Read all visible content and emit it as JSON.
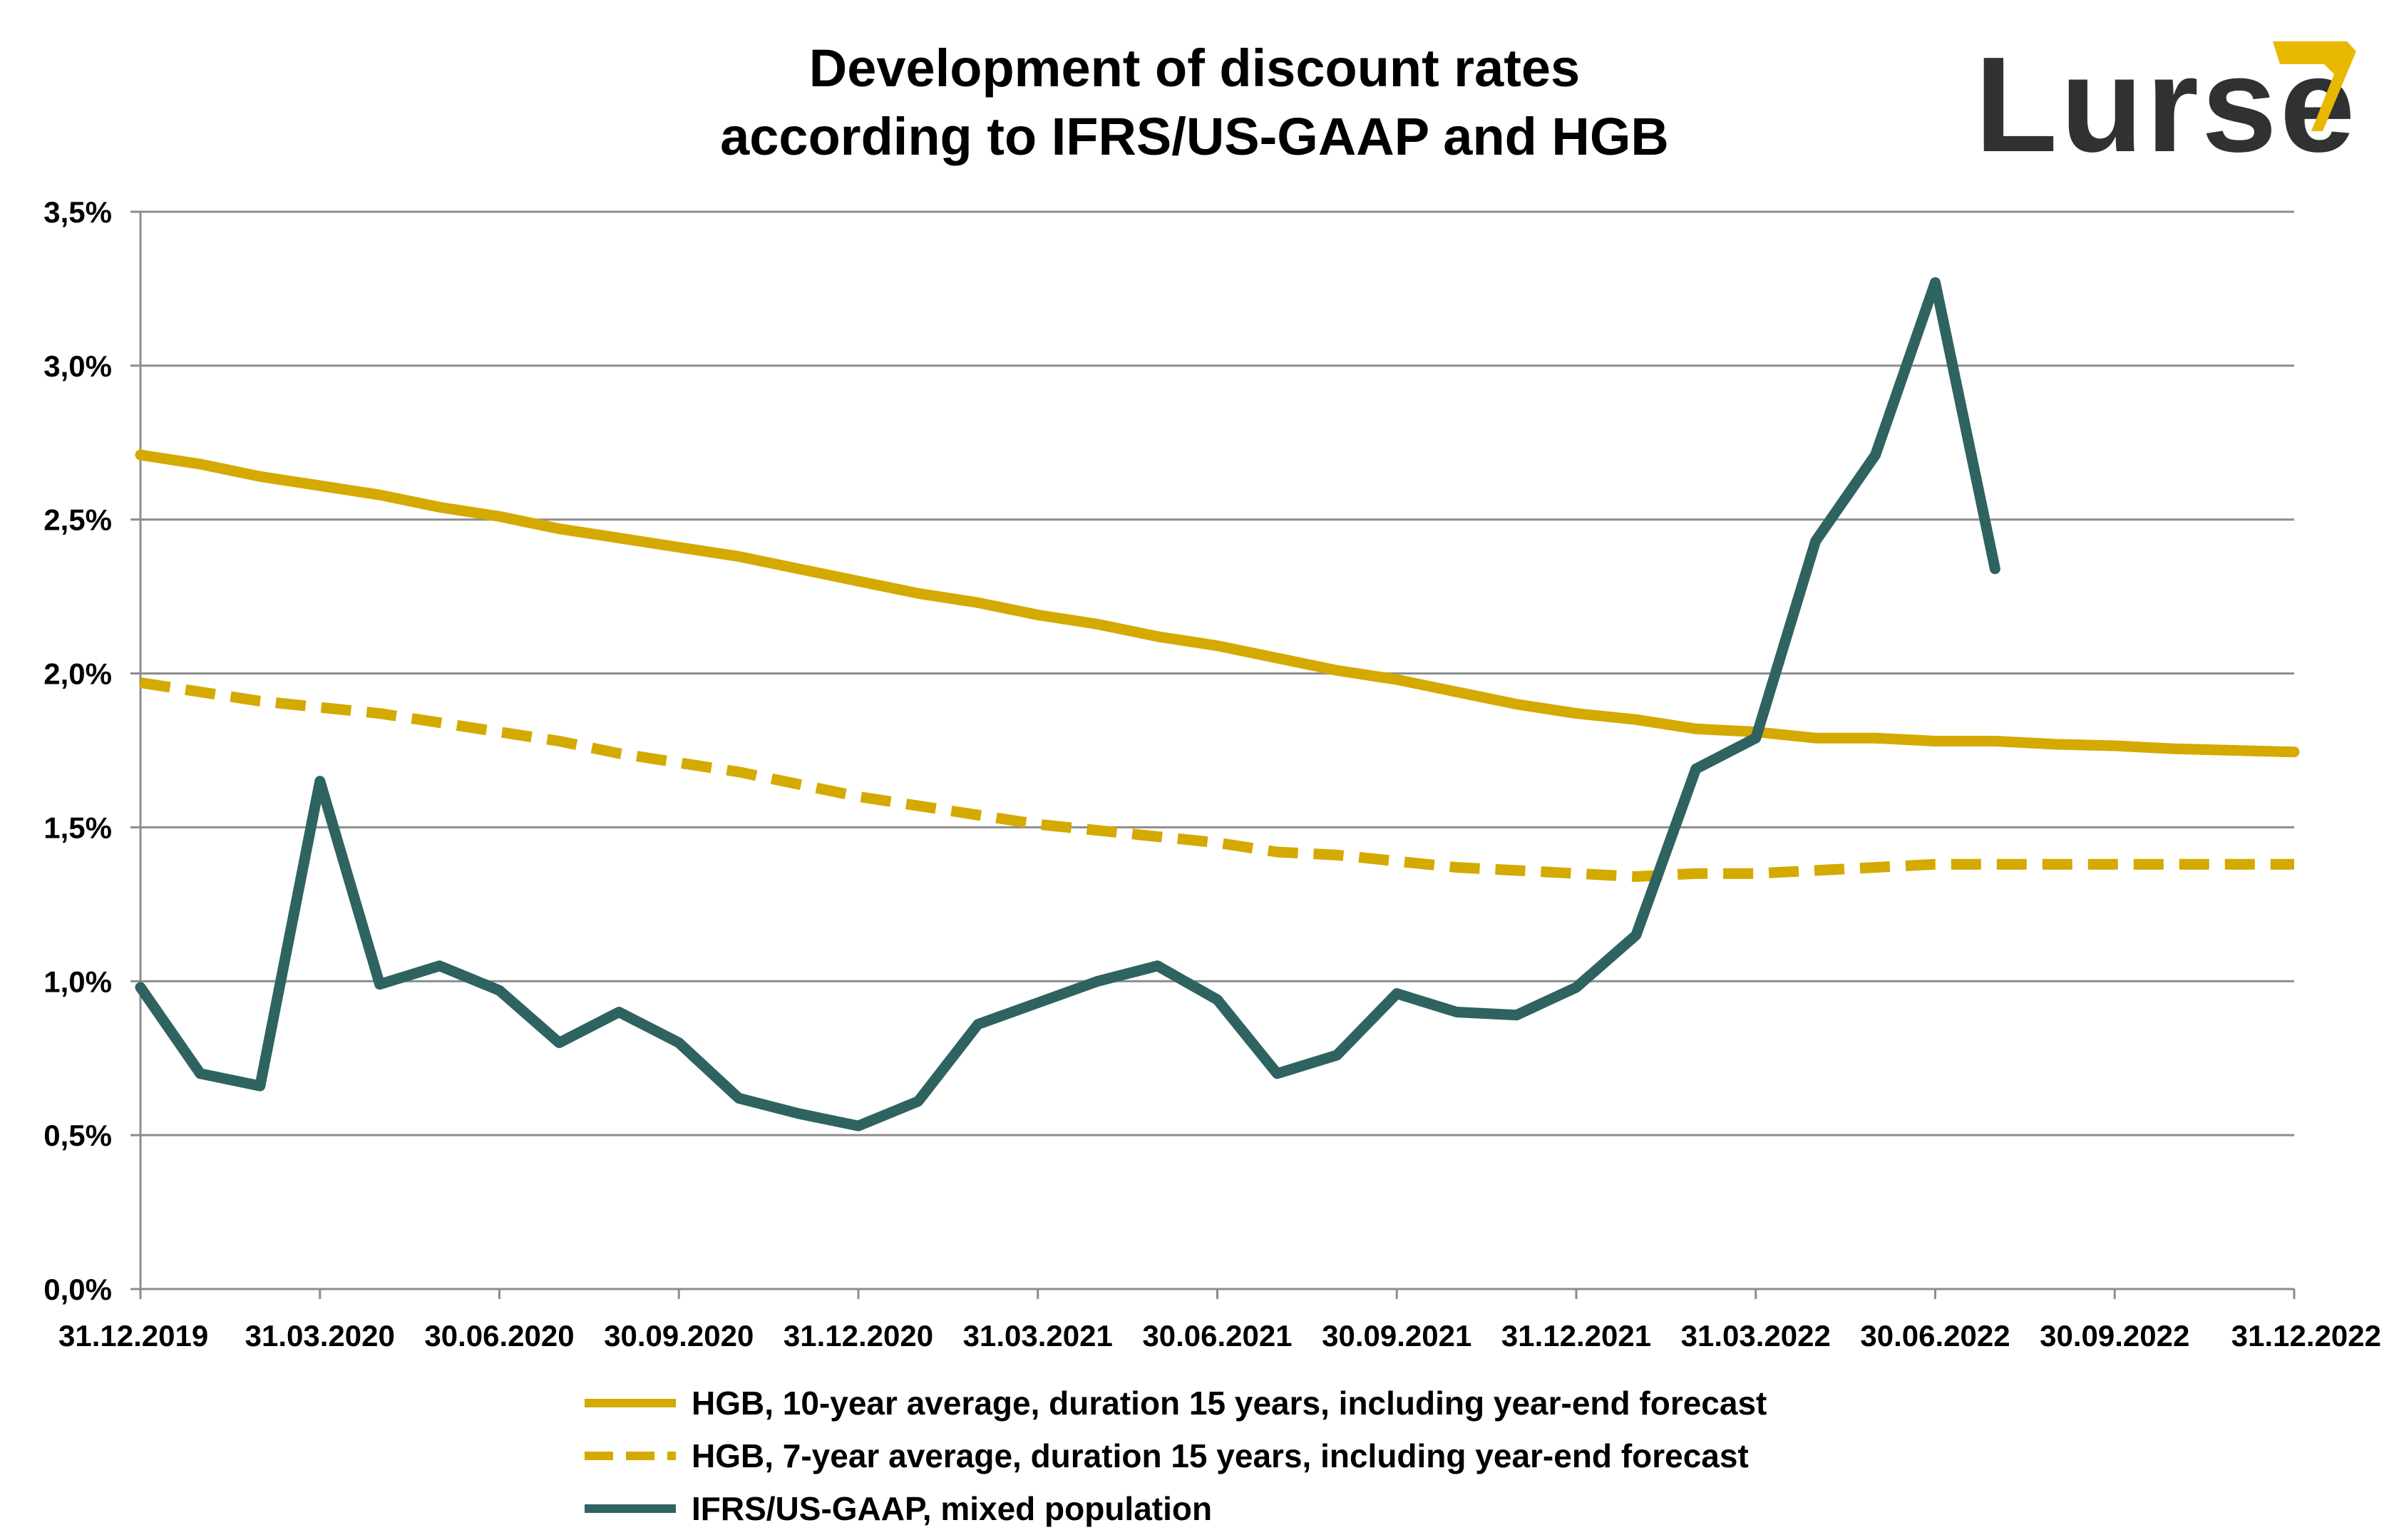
{
  "title_lines": [
    "Development of discount rates",
    "according to IFRS/US-GAAP and HGB"
  ],
  "logo": {
    "text": "Lurse"
  },
  "colors": {
    "gold": "#D4A900",
    "teal": "#2E6361",
    "grid": "#8C8C8C",
    "logo_text": "#2F3132",
    "logo_accent": "#E8B800"
  },
  "chart_data": {
    "type": "line",
    "title": "Development of discount rates according to IFRS/US-GAAP and HGB",
    "xlabel": "",
    "ylabel": "",
    "x_ticks": [
      "31.12.2019",
      "31.03.2020",
      "30.06.2020",
      "30.09.2020",
      "31.12.2020",
      "31.03.2021",
      "30.06.2021",
      "30.09.2021",
      "31.12.2021",
      "31.03.2022",
      "30.06.2022",
      "30.09.2022",
      "31.12.2022"
    ],
    "y_ticks": [
      "0,0%",
      "0,5%",
      "1,0%",
      "1,5%",
      "2,0%",
      "2,5%",
      "3,0%",
      "3,5%"
    ],
    "ylim": [
      0,
      3.5
    ],
    "x_months_range": [
      0,
      36
    ],
    "grid": "horizontal",
    "legend_position": "bottom",
    "series": [
      {
        "name": "HGB, 10-year average, duration 15 years, including year-end forecast",
        "style": "solid",
        "color": "#D4A900",
        "x": [
          "31.12.2019",
          "31.01.2020",
          "29.02.2020",
          "31.03.2020",
          "30.04.2020",
          "31.05.2020",
          "30.06.2020",
          "31.07.2020",
          "31.08.2020",
          "30.09.2020",
          "31.10.2020",
          "30.11.2020",
          "31.12.2020",
          "31.01.2021",
          "28.02.2021",
          "31.03.2021",
          "30.04.2021",
          "31.05.2021",
          "30.06.2021",
          "31.07.2021",
          "31.08.2021",
          "30.09.2021",
          "31.10.2021",
          "30.11.2021",
          "31.12.2021",
          "31.01.2022",
          "28.02.2022",
          "31.03.2022",
          "30.04.2022",
          "31.05.2022",
          "30.06.2022",
          "31.07.2022",
          "31.08.2022",
          "30.09.2022",
          "31.10.2022",
          "30.11.2022",
          "31.12.2022"
        ],
        "values": [
          2.71,
          2.68,
          2.64,
          2.61,
          2.58,
          2.54,
          2.51,
          2.47,
          2.44,
          2.41,
          2.38,
          2.34,
          2.3,
          2.26,
          2.23,
          2.19,
          2.16,
          2.12,
          2.09,
          2.05,
          2.01,
          1.98,
          1.94,
          1.9,
          1.87,
          1.85,
          1.82,
          1.81,
          1.79,
          1.79,
          1.78,
          1.78,
          1.77,
          1.765,
          1.755,
          1.75,
          1.745
        ]
      },
      {
        "name": "HGB, 7-year average, duration 15 years, including year-end forecast",
        "style": "dashed",
        "color": "#D4A900",
        "x": [
          "31.12.2019",
          "31.01.2020",
          "29.02.2020",
          "31.03.2020",
          "30.04.2020",
          "31.05.2020",
          "30.06.2020",
          "31.07.2020",
          "31.08.2020",
          "30.09.2020",
          "31.10.2020",
          "30.11.2020",
          "31.12.2020",
          "31.01.2021",
          "28.02.2021",
          "31.03.2021",
          "30.04.2021",
          "31.05.2021",
          "30.06.2021",
          "31.07.2021",
          "31.08.2021",
          "30.09.2021",
          "31.10.2021",
          "30.11.2021",
          "31.12.2021",
          "31.01.2022",
          "28.02.2022",
          "31.03.2022",
          "30.04.2022",
          "31.05.2022",
          "30.06.2022",
          "31.07.2022",
          "31.08.2022",
          "30.09.2022",
          "31.10.2022",
          "30.11.2022",
          "31.12.2022"
        ],
        "values": [
          1.97,
          1.94,
          1.91,
          1.89,
          1.87,
          1.84,
          1.81,
          1.78,
          1.74,
          1.71,
          1.68,
          1.64,
          1.6,
          1.57,
          1.54,
          1.51,
          1.49,
          1.47,
          1.45,
          1.42,
          1.41,
          1.39,
          1.37,
          1.36,
          1.35,
          1.34,
          1.35,
          1.35,
          1.36,
          1.37,
          1.38,
          1.38,
          1.38,
          1.38,
          1.38,
          1.38,
          1.38
        ]
      },
      {
        "name": "IFRS/US-GAAP, mixed population",
        "style": "solid",
        "color": "#2E6361",
        "x": [
          "31.12.2019",
          "31.01.2020",
          "29.02.2020",
          "31.03.2020",
          "30.04.2020",
          "31.05.2020",
          "30.06.2020",
          "31.07.2020",
          "31.08.2020",
          "30.09.2020",
          "31.10.2020",
          "30.11.2020",
          "31.12.2020",
          "31.01.2021",
          "28.02.2021",
          "31.03.2021",
          "30.04.2021",
          "31.05.2021",
          "30.06.2021",
          "31.07.2021",
          "31.08.2021",
          "30.09.2021",
          "31.10.2021",
          "30.11.2021",
          "31.12.2021",
          "31.01.2022",
          "28.02.2022",
          "31.03.2022",
          "30.04.2022",
          "31.05.2022",
          "30.06.2022",
          "31.07.2022"
        ],
        "values": [
          0.98,
          0.7,
          0.66,
          1.65,
          0.99,
          1.05,
          0.97,
          0.8,
          0.9,
          0.8,
          0.62,
          0.57,
          0.53,
          0.61,
          0.86,
          0.93,
          1.0,
          1.05,
          0.94,
          0.7,
          0.76,
          0.96,
          0.9,
          0.89,
          0.98,
          1.15,
          1.69,
          1.79,
          2.43,
          2.71,
          3.27,
          2.34
        ]
      }
    ]
  }
}
